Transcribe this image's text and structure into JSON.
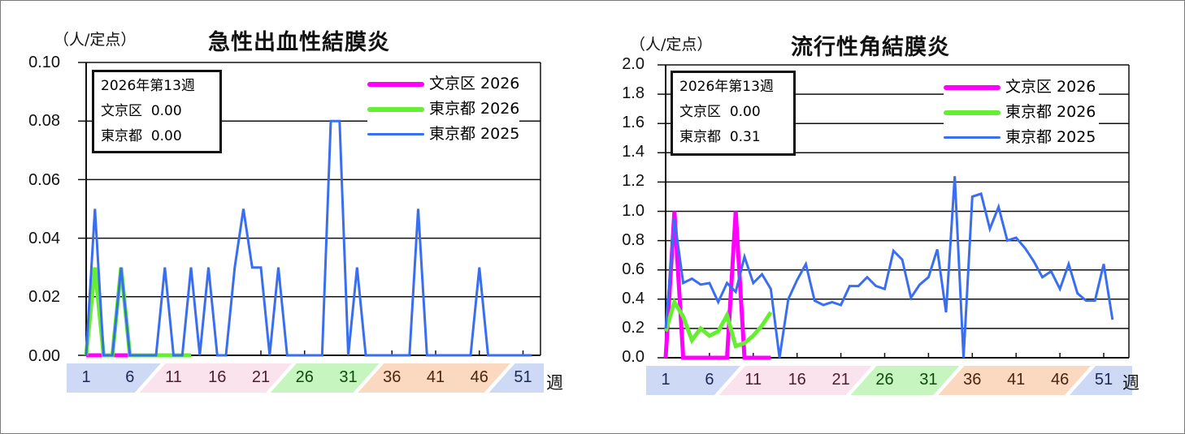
{
  "charts": [
    {
      "unit_label": "（人/定点）",
      "title": "急性出血性結膜炎",
      "info": {
        "week": "2026年第13週",
        "ward_label": "文京区",
        "ward_value": "0.00",
        "tokyo_label": "東京都",
        "tokyo_value": "0.00"
      },
      "legend": [
        {
          "label": "文京区 2026",
          "color": "#ff00ff"
        },
        {
          "label": "東京都 2026",
          "color": "#66ee33"
        },
        {
          "label": "東京都 2025",
          "color": "#3a6ef0"
        }
      ],
      "y_ticks": [
        "0.10",
        "0.08",
        "0.06",
        "0.04",
        "0.02",
        "0.00"
      ],
      "x_labels": [
        "1",
        "6",
        "11",
        "16",
        "21",
        "26",
        "31",
        "36",
        "41",
        "46",
        "51"
      ],
      "x_unit": "週"
    },
    {
      "unit_label": "（人/定点）",
      "title": "流行性角結膜炎",
      "info": {
        "week": "2026年第13週",
        "ward_label": "文京区",
        "ward_value": "0.00",
        "tokyo_label": "東京都",
        "tokyo_value": "0.31"
      },
      "legend": [
        {
          "label": "文京区 2026",
          "color": "#ff00ff"
        },
        {
          "label": "東京都 2026",
          "color": "#66ee33"
        },
        {
          "label": "東京都 2025",
          "color": "#3a6ef0"
        }
      ],
      "y_ticks": [
        "2.0",
        "1.8",
        "1.6",
        "1.4",
        "1.2",
        "1.0",
        "0.8",
        "0.6",
        "0.4",
        "0.2",
        "0.0"
      ],
      "x_labels": [
        "1",
        "6",
        "11",
        "16",
        "21",
        "26",
        "31",
        "36",
        "41",
        "46",
        "51"
      ],
      "x_unit": "週"
    }
  ],
  "chart_data": [
    {
      "type": "line",
      "title": "急性出血性結膜炎",
      "ylabel": "（人/定点）",
      "xlabel": "週",
      "ylim": [
        0,
        0.1
      ],
      "yticks": [
        0,
        0.02,
        0.04,
        0.06,
        0.08,
        0.1
      ],
      "xticks": [
        1,
        6,
        11,
        16,
        21,
        26,
        31,
        36,
        41,
        46,
        51
      ],
      "grid": true,
      "legend_position": "upper right",
      "annotation": "2026年第13週 文京区 0.00 東京都 0.00",
      "series": [
        {
          "name": "文京区 2026",
          "color": "#ff00ff",
          "x": [
            1,
            2,
            3,
            4,
            5,
            6,
            7,
            8,
            9,
            10,
            11,
            12,
            13
          ],
          "values": [
            0,
            0,
            0,
            0,
            0,
            0,
            0,
            0,
            0,
            0,
            0,
            0,
            0
          ]
        },
        {
          "name": "東京都 2026",
          "color": "#66ee33",
          "x": [
            1,
            2,
            3,
            4,
            5,
            6,
            7,
            8,
            9,
            10,
            11,
            12,
            13
          ],
          "values": [
            0,
            0.03,
            0,
            0,
            0.03,
            0,
            0,
            0,
            0,
            0,
            0,
            0,
            0
          ]
        },
        {
          "name": "東京都 2025",
          "color": "#3a6ef0",
          "x": [
            1,
            2,
            3,
            4,
            5,
            6,
            7,
            8,
            9,
            10,
            11,
            12,
            13,
            14,
            15,
            16,
            17,
            18,
            19,
            20,
            21,
            22,
            23,
            24,
            25,
            26,
            27,
            28,
            29,
            30,
            31,
            32,
            33,
            34,
            35,
            36,
            37,
            38,
            39,
            40,
            41,
            42,
            43,
            44,
            45,
            46,
            47,
            48,
            49,
            50,
            51,
            52
          ],
          "values": [
            0,
            0.05,
            0,
            0,
            0.03,
            0,
            0,
            0,
            0,
            0.03,
            0,
            0,
            0.03,
            0,
            0.03,
            0,
            0,
            0.03,
            0.05,
            0.03,
            0.03,
            0,
            0.03,
            0,
            0,
            0,
            0,
            0,
            0.08,
            0.08,
            0,
            0.03,
            0,
            0,
            0,
            0,
            0,
            0,
            0.05,
            0,
            0,
            0,
            0,
            0,
            0,
            0.03,
            0,
            0,
            0,
            0,
            0,
            0
          ]
        }
      ]
    },
    {
      "type": "line",
      "title": "流行性角結膜炎",
      "ylabel": "（人/定点）",
      "xlabel": "週",
      "ylim": [
        0,
        2.0
      ],
      "yticks": [
        0,
        0.2,
        0.4,
        0.6,
        0.8,
        1.0,
        1.2,
        1.4,
        1.6,
        1.8,
        2.0
      ],
      "xticks": [
        1,
        6,
        11,
        16,
        21,
        26,
        31,
        36,
        41,
        46,
        51
      ],
      "grid": true,
      "legend_position": "upper right",
      "annotation": "2026年第13週 文京区 0.00 東京都 0.31",
      "series": [
        {
          "name": "文京区 2026",
          "color": "#ff00ff",
          "x": [
            1,
            2,
            3,
            4,
            5,
            6,
            7,
            8,
            9,
            10,
            11,
            12,
            13
          ],
          "values": [
            0,
            1.0,
            0,
            0,
            0,
            0,
            0,
            0,
            1.0,
            0,
            0,
            0,
            0
          ]
        },
        {
          "name": "東京都 2026",
          "color": "#66ee33",
          "x": [
            1,
            2,
            3,
            4,
            5,
            6,
            7,
            8,
            9,
            10,
            11,
            12,
            13
          ],
          "values": [
            0.18,
            0.38,
            0.28,
            0.12,
            0.2,
            0.15,
            0.18,
            0.29,
            0.08,
            0.1,
            0.15,
            0.22,
            0.31
          ]
        },
        {
          "name": "東京都 2025",
          "color": "#3a6ef0",
          "x": [
            1,
            2,
            3,
            4,
            5,
            6,
            7,
            8,
            9,
            10,
            11,
            12,
            13,
            14,
            15,
            16,
            17,
            18,
            19,
            20,
            21,
            22,
            23,
            24,
            25,
            26,
            27,
            28,
            29,
            30,
            31,
            32,
            33,
            34,
            35,
            36,
            37,
            38,
            39,
            40,
            41,
            42,
            43,
            44,
            45,
            46,
            47,
            48,
            49,
            50,
            51,
            52
          ],
          "values": [
            0.2,
            0.95,
            0.51,
            0.54,
            0.5,
            0.51,
            0.38,
            0.51,
            0.45,
            0.69,
            0.51,
            0.57,
            0.47,
            0,
            0.4,
            0.53,
            0.64,
            0.39,
            0.36,
            0.38,
            0.36,
            0.49,
            0.49,
            0.55,
            0.49,
            0.47,
            0.73,
            0.67,
            0.41,
            0.5,
            0.55,
            0.74,
            0.31,
            1.24,
            0,
            1.1,
            1.12,
            0.88,
            1.03,
            0.8,
            0.82,
            0.75,
            0.66,
            0.55,
            0.59,
            0.47,
            0.64,
            0.44,
            0.39,
            0.39,
            0.64,
            0.26
          ]
        }
      ]
    }
  ]
}
